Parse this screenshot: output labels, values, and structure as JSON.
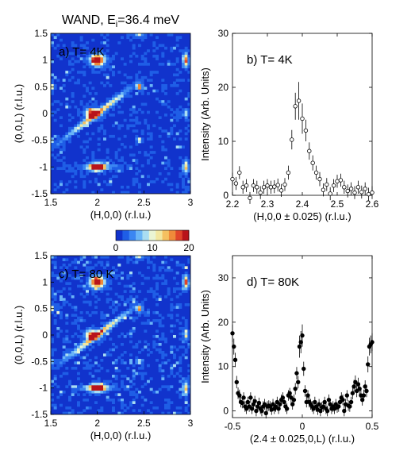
{
  "figure_title": "WAND, E",
  "figure_title_sub": "i",
  "figure_title_rest": "=36.4 meV",
  "colorbar": {
    "ticks": [
      "0",
      "10",
      "20"
    ],
    "colors": [
      "#1133cc",
      "#1f5ee6",
      "#3b86f2",
      "#6ab5f7",
      "#a9ddf2",
      "#eaf5d4",
      "#f2e7a0",
      "#f5c060",
      "#ef8a3a",
      "#e0452a",
      "#b8141a"
    ]
  },
  "chart_data": [
    {
      "id": "a",
      "type": "heatmap",
      "label": "a) T= 4K",
      "xlabel": "(H,0,0) (r.l.u.)",
      "ylabel": "(0,0,L) (r.l.u.)",
      "xlim": [
        1.5,
        3
      ],
      "ylim": [
        -1.5,
        1.5
      ],
      "xticks": [
        "1.5",
        "2",
        "2.5",
        "3"
      ],
      "yticks": [
        "-1.5",
        "-1",
        "-0.5",
        "0",
        "0.5",
        "1",
        "1.5"
      ],
      "clim": [
        0,
        20
      ]
    },
    {
      "id": "b",
      "type": "scatter",
      "label": "b) T= 4K",
      "xlabel": "(H,0,0 ± 0.025) (r.l.u.)",
      "ylabel": "Intensity (Arb. Units)",
      "xlim": [
        2.2,
        2.6
      ],
      "ylim": [
        0,
        30
      ],
      "xticks": [
        "2.2",
        "2.3",
        "2.4",
        "2.5",
        "2.6"
      ],
      "yticks": [
        "0",
        "10",
        "20",
        "30"
      ],
      "marker": "open-circle",
      "x": [
        2.2,
        2.21,
        2.22,
        2.23,
        2.24,
        2.25,
        2.26,
        2.27,
        2.28,
        2.29,
        2.3,
        2.31,
        2.32,
        2.33,
        2.34,
        2.35,
        2.36,
        2.37,
        2.38,
        2.39,
        2.4,
        2.41,
        2.42,
        2.43,
        2.44,
        2.45,
        2.46,
        2.47,
        2.48,
        2.49,
        2.5,
        2.51,
        2.52,
        2.53,
        2.54,
        2.55,
        2.56,
        2.57,
        2.58,
        2.59,
        2.6
      ],
      "y": [
        3.0,
        2.2,
        4.2,
        1.5,
        1.8,
        -0.5,
        1.8,
        1.5,
        0.5,
        1.5,
        1.8,
        1.5,
        1.6,
        1.9,
        0.9,
        2.0,
        4.2,
        10.3,
        16.5,
        17.5,
        14.2,
        12.0,
        8.2,
        6.0,
        4.2,
        3.0,
        1.0,
        2.0,
        0.3,
        1.8,
        2.6,
        2.8,
        1.5,
        0.8,
        1.2,
        0.5,
        1.5,
        0.6,
        1.2,
        0.2,
        0.5
      ],
      "yerr": [
        1.2,
        1.2,
        1.2,
        1.2,
        1.2,
        1.1,
        1.2,
        1.2,
        1.2,
        1.2,
        1.2,
        1.2,
        1.2,
        1.2,
        1.2,
        1.2,
        1.3,
        1.8,
        2.5,
        3.5,
        2.8,
        2.0,
        1.6,
        1.4,
        1.3,
        1.3,
        1.2,
        1.2,
        1.2,
        1.2,
        1.2,
        1.2,
        1.2,
        1.2,
        1.2,
        1.2,
        1.2,
        1.2,
        1.2,
        1.2,
        1.2
      ]
    },
    {
      "id": "c",
      "type": "heatmap",
      "label": "c) T= 80 K",
      "xlabel": "(H,0,0) (r.l.u.)",
      "ylabel": "(0,0,L) (r.l.u.)",
      "xlim": [
        1.5,
        3
      ],
      "ylim": [
        -1.5,
        1.5
      ],
      "xticks": [
        "1.5",
        "2",
        "2.5",
        "3"
      ],
      "yticks": [
        "-1.5",
        "-1",
        "-0.5",
        "0",
        "0.5",
        "1",
        "1.5"
      ],
      "clim": [
        0,
        20
      ]
    },
    {
      "id": "d",
      "type": "scatter",
      "label": "d) T= 80K",
      "xlabel": "(2.4 ± 0.025,0,L) (r.l.u.)",
      "ylabel": "Intensity (Arb. Units)",
      "xlim": [
        -0.5,
        0.5
      ],
      "ylim": [
        -1.5,
        35
      ],
      "xticks": [
        "-0.5",
        "0",
        "0.5"
      ],
      "yticks": [
        "0",
        "10",
        "20",
        "30"
      ],
      "marker": "filled-circle",
      "x": [
        -0.5,
        -0.49,
        -0.48,
        -0.47,
        -0.46,
        -0.45,
        -0.44,
        -0.43,
        -0.42,
        -0.41,
        -0.4,
        -0.39,
        -0.38,
        -0.37,
        -0.36,
        -0.35,
        -0.34,
        -0.33,
        -0.32,
        -0.31,
        -0.3,
        -0.29,
        -0.28,
        -0.27,
        -0.26,
        -0.25,
        -0.24,
        -0.23,
        -0.22,
        -0.21,
        -0.2,
        -0.19,
        -0.18,
        -0.17,
        -0.16,
        -0.15,
        -0.14,
        -0.13,
        -0.12,
        -0.11,
        -0.1,
        -0.09,
        -0.08,
        -0.07,
        -0.06,
        -0.05,
        -0.04,
        -0.03,
        -0.02,
        -0.01,
        0,
        0.01,
        0.02,
        0.03,
        0.04,
        0.05,
        0.06,
        0.07,
        0.08,
        0.09,
        0.1,
        0.11,
        0.12,
        0.13,
        0.14,
        0.15,
        0.16,
        0.17,
        0.18,
        0.19,
        0.2,
        0.21,
        0.22,
        0.23,
        0.24,
        0.25,
        0.26,
        0.27,
        0.28,
        0.29,
        0.3,
        0.31,
        0.32,
        0.33,
        0.34,
        0.35,
        0.36,
        0.37,
        0.38,
        0.39,
        0.4,
        0.41,
        0.42,
        0.43,
        0.44,
        0.45,
        0.46,
        0.47,
        0.48,
        0.49,
        0.5
      ],
      "y": [
        17.5,
        14.5,
        11.5,
        6.5,
        4.0,
        3.5,
        2.0,
        1.8,
        3.0,
        1.0,
        0.5,
        2.0,
        1.0,
        3.0,
        0.5,
        1.5,
        2.2,
        0.0,
        1.0,
        1.8,
        0.5,
        0.0,
        1.0,
        1.5,
        -0.5,
        1.0,
        1.2,
        1.0,
        0.3,
        1.5,
        0.5,
        1.0,
        2.0,
        0.5,
        1.5,
        2.5,
        3.0,
        2.0,
        1.0,
        0.5,
        3.5,
        4.0,
        3.0,
        1.5,
        2.5,
        5.0,
        8.5,
        6.5,
        14.5,
        15.5,
        17.0,
        9.5,
        4.5,
        2.0,
        3.5,
        2.0,
        1.5,
        1.0,
        0.5,
        2.0,
        1.0,
        0.3,
        1.5,
        0.0,
        0.8,
        1.0,
        2.0,
        0.5,
        0.0,
        2.5,
        1.5,
        0.5,
        1.0,
        0.5,
        1.5,
        0.8,
        1.0,
        2.0,
        3.0,
        2.5,
        0.0,
        1.5,
        3.5,
        1.2,
        1.0,
        2.0,
        4.0,
        5.5,
        6.5,
        4.5,
        6.0,
        5.0,
        3.5,
        2.5,
        3.5,
        5.5,
        4.5,
        10.5,
        14.5,
        15.0,
        15.5
      ],
      "yerr": [
        2.0,
        1.8,
        1.6,
        1.4,
        1.3,
        1.3,
        1.2,
        1.2,
        1.2,
        1.2,
        1.2,
        1.2,
        1.2,
        1.2,
        1.2,
        1.2,
        1.2,
        1.2,
        1.2,
        1.2,
        1.2,
        1.2,
        1.2,
        1.2,
        1.2,
        1.2,
        1.2,
        1.2,
        1.2,
        1.2,
        1.2,
        1.2,
        1.2,
        1.2,
        1.2,
        1.2,
        1.2,
        1.2,
        1.2,
        1.2,
        1.2,
        1.2,
        1.2,
        1.2,
        1.2,
        1.3,
        1.4,
        1.4,
        2.5,
        2.5,
        2.5,
        1.6,
        1.3,
        1.2,
        1.2,
        1.2,
        1.2,
        1.2,
        1.2,
        1.2,
        1.2,
        1.2,
        1.2,
        1.2,
        1.2,
        1.2,
        1.2,
        1.2,
        1.2,
        1.2,
        1.2,
        1.2,
        1.2,
        1.2,
        1.2,
        1.2,
        1.2,
        1.2,
        1.2,
        1.2,
        1.2,
        1.2,
        1.2,
        1.2,
        1.2,
        1.2,
        1.4,
        1.5,
        1.5,
        1.4,
        1.5,
        1.4,
        1.3,
        1.3,
        1.3,
        1.4,
        1.4,
        1.8,
        2.0,
        2.0,
        2.0
      ]
    }
  ]
}
